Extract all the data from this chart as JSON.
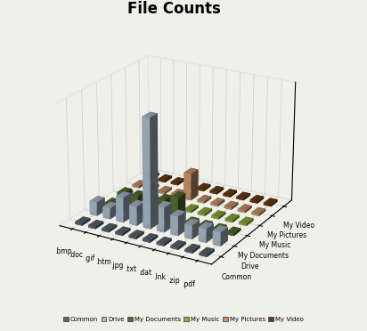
{
  "title": "File Counts",
  "file_types": [
    ".bmp",
    ".doc",
    ".gif",
    ".htm",
    ".jpg",
    ".txt",
    ".dat",
    ".lnk",
    ".zip",
    ".pdf"
  ],
  "locations": [
    "Common",
    "Drive",
    "My Documents",
    "My Music",
    "My Pictures",
    "My Video"
  ],
  "colors": [
    "#5a6470",
    "#a8b8c8",
    "#556b2f",
    "#8faa3a",
    "#c8956a",
    "#6b3a10"
  ],
  "data": {
    "Common": [
      0.4,
      0.4,
      0.4,
      0.4,
      0.4,
      0.4,
      0.4,
      0.4,
      0.4,
      0.4
    ],
    "Drive": [
      2.5,
      2.0,
      4.5,
      3.5,
      20,
      4.5,
      3.5,
      2.5,
      2.5,
      2.5
    ],
    "My Documents": [
      0.4,
      3.0,
      3.0,
      0.4,
      3.5,
      4.5,
      0.4,
      0.4,
      0.4,
      0.4
    ],
    "My Music": [
      0.4,
      0.4,
      0.4,
      0.4,
      0.4,
      0.4,
      0.4,
      0.4,
      0.4,
      0.4
    ],
    "My Pictures": [
      0.4,
      0.4,
      0.4,
      0.4,
      5.0,
      0.4,
      0.4,
      0.4,
      0.4,
      0.4
    ],
    "My Video": [
      0.4,
      0.4,
      0.4,
      0.4,
      0.4,
      0.4,
      0.4,
      0.4,
      0.4,
      0.4
    ]
  },
  "background_color": "#f0f0ea",
  "title_fontsize": 12
}
